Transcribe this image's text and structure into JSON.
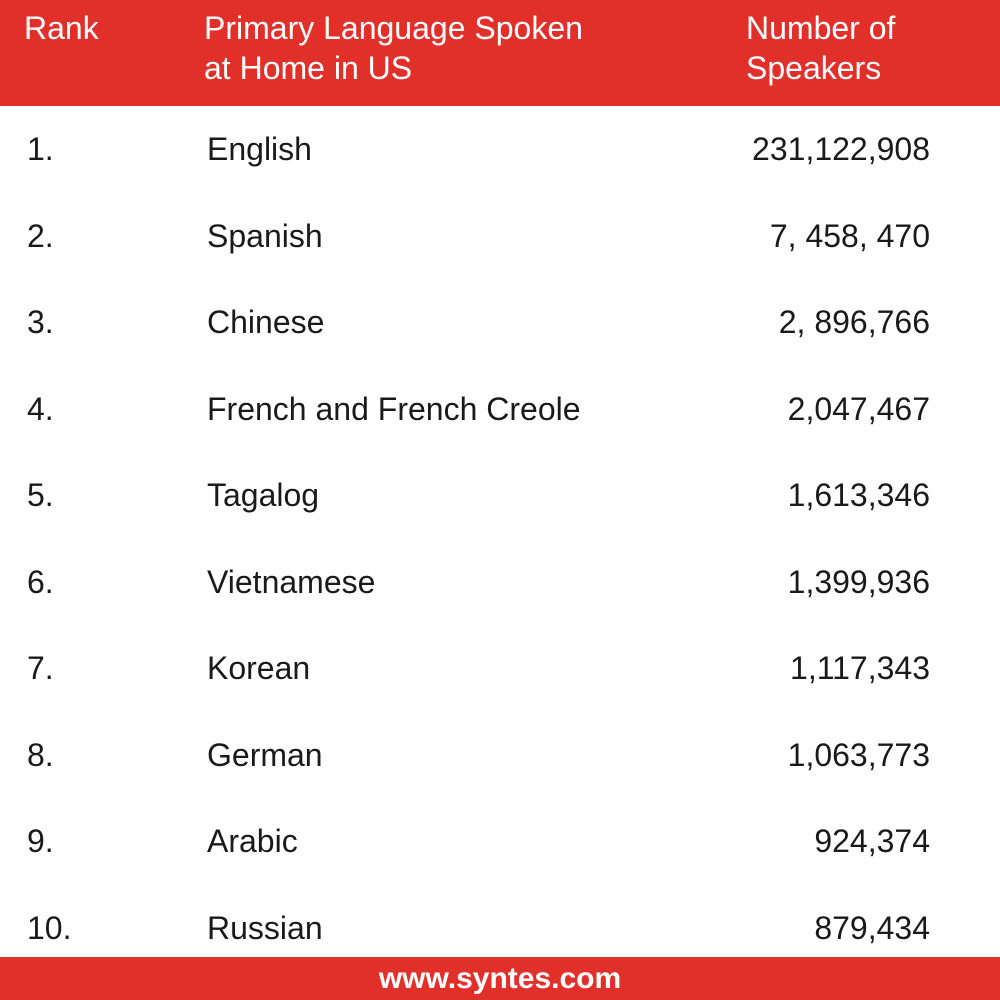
{
  "colors": {
    "accent": "#e1302a",
    "header_text": "#ffffff",
    "body_text": "#1a1a1a",
    "background": "#ffffff"
  },
  "header": {
    "rank_label": "Rank",
    "language_label": "Primary Language Spoken\nat Home in US",
    "speakers_label": "Number of\nSpeakers"
  },
  "footer": {
    "website": "www.syntes.com"
  },
  "chart_data": {
    "type": "table",
    "columns": [
      "Rank",
      "Primary Language Spoken at Home in US",
      "Number of Speakers"
    ],
    "rows": [
      {
        "rank": "1.",
        "language": "English",
        "speakers": "231,122,908"
      },
      {
        "rank": "2.",
        "language": "Spanish",
        "speakers": "7, 458, 470"
      },
      {
        "rank": "3.",
        "language": "Chinese",
        "speakers": "2, 896,766"
      },
      {
        "rank": "4.",
        "language": "French and French Creole",
        "speakers": "2,047,467"
      },
      {
        "rank": "5.",
        "language": "Tagalog",
        "speakers": "1,613,346"
      },
      {
        "rank": "6.",
        "language": "Vietnamese",
        "speakers": "1,399,936"
      },
      {
        "rank": "7.",
        "language": "Korean",
        "speakers": "1,117,343"
      },
      {
        "rank": "8.",
        "language": "German",
        "speakers": "1,063,773"
      },
      {
        "rank": "9.",
        "language": "Arabic",
        "speakers": "924,374"
      },
      {
        "rank": "10.",
        "language": "Russian",
        "speakers": "879,434"
      }
    ]
  }
}
